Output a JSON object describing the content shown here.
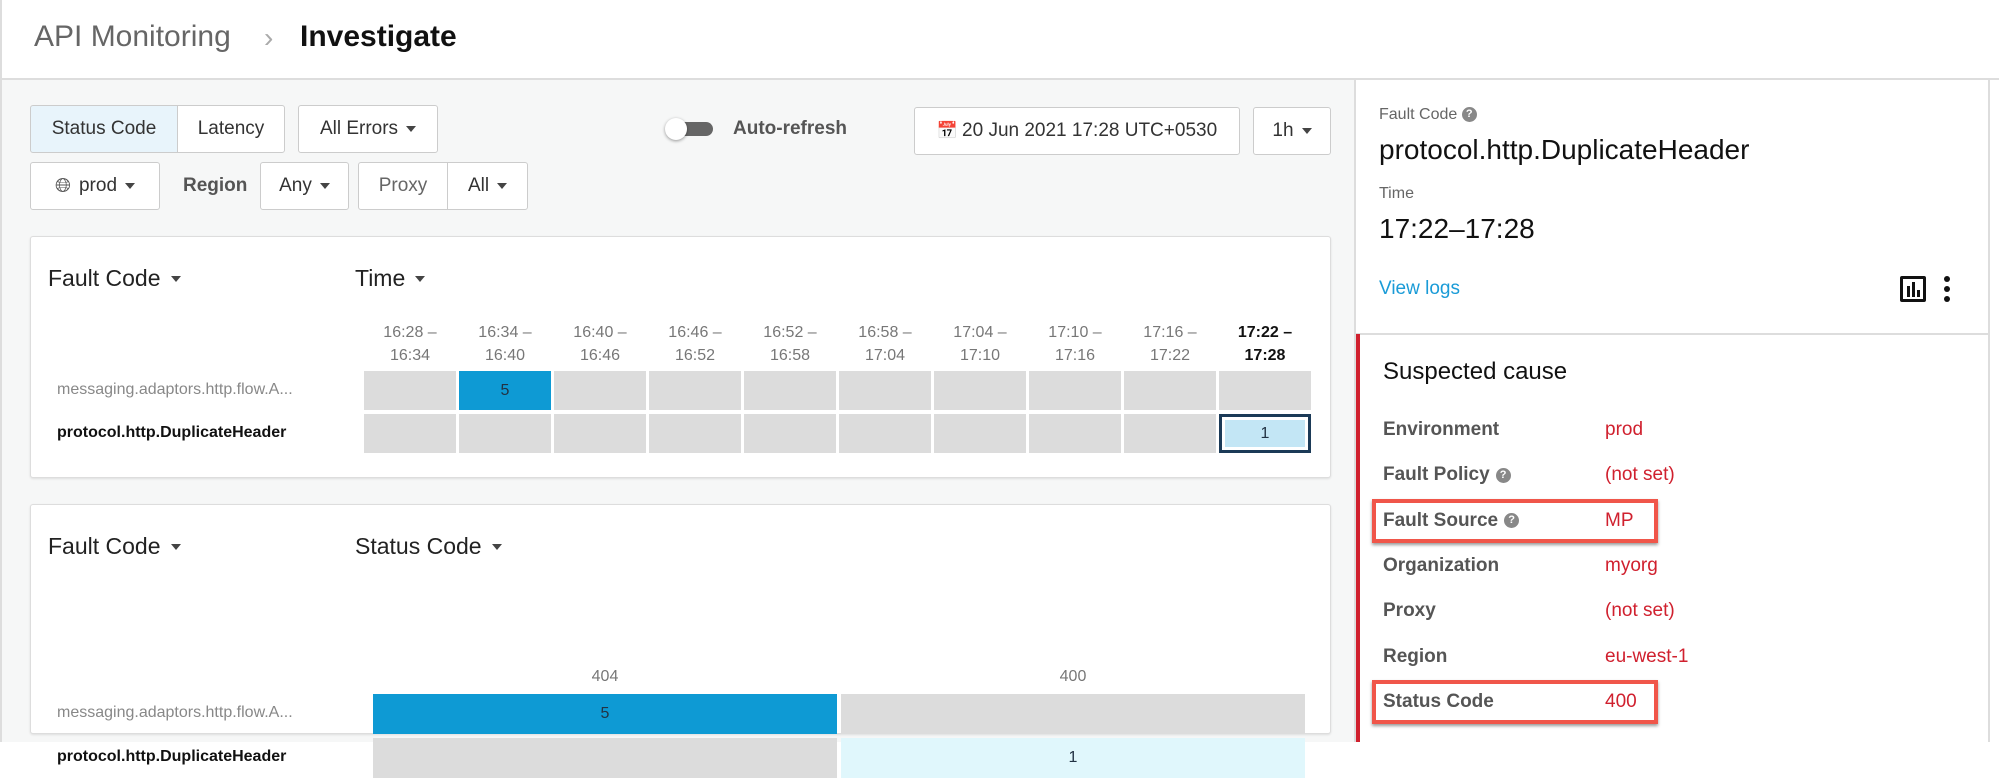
{
  "breadcrumb": {
    "parent": "API Monitoring",
    "separator": "›",
    "current": "Investigate"
  },
  "toolbar": {
    "status_code": "Status Code",
    "latency": "Latency",
    "errors": "All Errors",
    "auto_refresh": "Auto-refresh",
    "auto_refresh_on": false,
    "date": "20 Jun 2021 17:28 UTC+0530",
    "range": "1h",
    "env": "prod",
    "region_label": "Region",
    "region": "Any",
    "proxy_label": "Proxy",
    "proxy": "All"
  },
  "time_card": {
    "row_dim": "Fault Code",
    "col_dim": "Time",
    "columns": [
      "16:28 –\n16:34",
      "16:34 –\n16:40",
      "16:40 –\n16:46",
      "16:46 –\n16:52",
      "16:52 –\n16:58",
      "16:58 –\n17:04",
      "17:04 –\n17:10",
      "17:10 –\n17:16",
      "17:16 –\n17:22",
      "17:22 –\n17:28"
    ],
    "rows": [
      {
        "label": "messaging.adaptors.http.flow.A...",
        "values": [
          null,
          5,
          null,
          null,
          null,
          null,
          null,
          null,
          null,
          null
        ]
      },
      {
        "label": "protocol.http.DuplicateHeader",
        "values": [
          null,
          null,
          null,
          null,
          null,
          null,
          null,
          null,
          null,
          1
        ]
      }
    ],
    "selected": {
      "row": 1,
      "col": 9
    }
  },
  "status_card": {
    "row_dim": "Fault Code",
    "col_dim": "Status Code",
    "columns": [
      "404",
      "400"
    ],
    "rows": [
      {
        "label": "messaging.adaptors.http.flow.A...",
        "values": [
          5,
          null
        ]
      },
      {
        "label": "protocol.http.DuplicateHeader",
        "values": [
          null,
          1
        ]
      }
    ]
  },
  "colors": {
    "high": "#0e9ad4",
    "low": "#c3e6f5",
    "light": "#e0f7fc",
    "empty": "#dcdcdc",
    "alert": "#d0202e",
    "link": "#1a9bd7"
  },
  "detail": {
    "fault_code_label": "Fault Code",
    "fault_code": "protocol.http.DuplicateHeader",
    "time_label": "Time",
    "time": "17:22–17:28",
    "view_logs": "View logs",
    "suspected_title": "Suspected cause",
    "items": [
      {
        "k": "Environment",
        "v": "prod"
      },
      {
        "k": "Fault Policy",
        "v": "(not set)",
        "help": true
      },
      {
        "k": "Fault Source",
        "v": "MP",
        "help": true,
        "highlight": true
      },
      {
        "k": "Organization",
        "v": "myorg"
      },
      {
        "k": "Proxy",
        "v": "(not set)"
      },
      {
        "k": "Region",
        "v": "eu-west-1"
      },
      {
        "k": "Status Code",
        "v": "400",
        "highlight": true
      }
    ]
  }
}
